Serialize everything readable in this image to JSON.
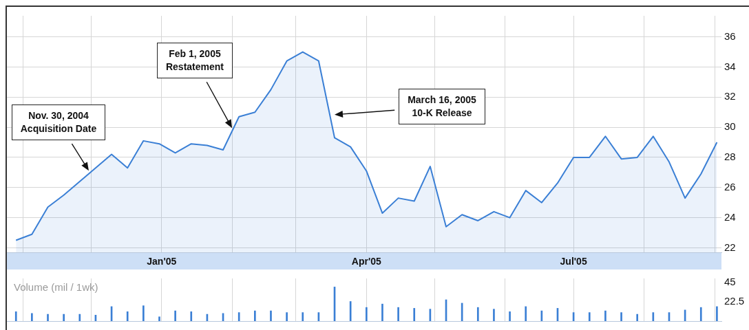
{
  "chart_data": [
    {
      "type": "area",
      "x": [
        "2004-10-29",
        "2004-11-05",
        "2004-11-12",
        "2004-11-19",
        "2004-11-26",
        "2004-12-03",
        "2004-12-10",
        "2004-12-17",
        "2004-12-24",
        "2004-12-31",
        "2005-01-07",
        "2005-01-14",
        "2005-01-21",
        "2005-01-28",
        "2005-02-04",
        "2005-02-11",
        "2005-02-18",
        "2005-02-25",
        "2005-03-04",
        "2005-03-11",
        "2005-03-18",
        "2005-03-25",
        "2005-04-01",
        "2005-04-08",
        "2005-04-15",
        "2005-04-22",
        "2005-04-29",
        "2005-05-06",
        "2005-05-13",
        "2005-05-20",
        "2005-05-27",
        "2005-06-03",
        "2005-06-10",
        "2005-06-17",
        "2005-06-24",
        "2005-07-01",
        "2005-07-08",
        "2005-07-15",
        "2005-07-22",
        "2005-07-29",
        "2005-08-05",
        "2005-08-12",
        "2005-08-19",
        "2005-08-26",
        "2005-09-02"
      ],
      "series": [
        {
          "color": "#3a7fd5",
          "values": [
            22.5,
            22.9,
            24.7,
            25.5,
            26.4,
            27.3,
            28.2,
            27.3,
            29.1,
            28.9,
            28.3,
            28.9,
            28.8,
            28.5,
            30.7,
            31.0,
            32.5,
            34.4,
            35.0,
            34.4,
            29.3,
            28.7,
            27.1,
            24.3,
            25.3,
            25.1,
            27.4,
            23.4,
            24.2,
            23.8,
            24.4,
            24.0,
            25.8,
            25.0,
            26.3,
            28.0,
            28.0,
            29.4,
            27.9,
            28.0,
            29.4,
            27.7,
            25.3,
            26.9,
            29.0
          ]
        }
      ],
      "xlim": [
        "2004-10-25",
        "2005-09-04"
      ],
      "xticks": [
        {
          "value": "2004-11-01",
          "label": null
        },
        {
          "value": "2004-12-01",
          "label": null
        },
        {
          "value": "2005-01-01",
          "label": "Jan'05"
        },
        {
          "value": "2005-02-01",
          "label": null
        },
        {
          "value": "2005-03-01",
          "label": null
        },
        {
          "value": "2005-04-01",
          "label": "Apr'05"
        },
        {
          "value": "2005-05-01",
          "label": null
        },
        {
          "value": "2005-06-01",
          "label": null
        },
        {
          "value": "2005-07-01",
          "label": "Jul'05"
        },
        {
          "value": "2005-08-01",
          "label": null
        },
        {
          "value": "2005-09-01",
          "label": null
        }
      ],
      "ylim": [
        21.7,
        37.4
      ],
      "yticks": [
        22,
        24,
        26,
        28,
        30,
        32,
        34,
        36
      ],
      "grid": true,
      "annotations": [
        "Nov. 30, 2004\nAcquisition Date",
        "Feb 1, 2005\nRestatement",
        "March 16, 2005\n10-K Release"
      ]
    },
    {
      "type": "bar",
      "title": "Volume (mil / 1wk)",
      "x": [
        "2004-10-29",
        "2004-11-05",
        "2004-11-12",
        "2004-11-19",
        "2004-11-26",
        "2004-12-03",
        "2004-12-10",
        "2004-12-17",
        "2004-12-24",
        "2004-12-31",
        "2005-01-07",
        "2005-01-14",
        "2005-01-21",
        "2005-01-28",
        "2005-02-04",
        "2005-02-11",
        "2005-02-18",
        "2005-02-25",
        "2005-03-04",
        "2005-03-11",
        "2005-03-18",
        "2005-03-25",
        "2005-04-01",
        "2005-04-08",
        "2005-04-15",
        "2005-04-22",
        "2005-04-29",
        "2005-05-06",
        "2005-05-13",
        "2005-05-20",
        "2005-05-27",
        "2005-06-03",
        "2005-06-10",
        "2005-06-17",
        "2005-06-24",
        "2005-07-01",
        "2005-07-08",
        "2005-07-15",
        "2005-07-22",
        "2005-07-29",
        "2005-08-05",
        "2005-08-12",
        "2005-08-19",
        "2005-08-26",
        "2005-09-02"
      ],
      "values": [
        11,
        9,
        8,
        8,
        8,
        7,
        17,
        11,
        18,
        5,
        12,
        11,
        8,
        9,
        10,
        12,
        12,
        10,
        10,
        10,
        40,
        23,
        16,
        20,
        16,
        15,
        14,
        25,
        21,
        16,
        14,
        11,
        17,
        12,
        15,
        10,
        10,
        12,
        10,
        8,
        10,
        10,
        13,
        16,
        17
      ],
      "color": "#3a7fd5",
      "xlim": [
        "2004-10-25",
        "2005-09-04"
      ],
      "xticks": [
        {
          "value": "2004-11-01",
          "label": null
        },
        {
          "value": "2004-12-01",
          "label": null
        },
        {
          "value": "2005-01-01",
          "label": null
        },
        {
          "value": "2005-02-01",
          "label": null
        },
        {
          "value": "2005-03-01",
          "label": null
        },
        {
          "value": "2005-04-01",
          "label": null
        },
        {
          "value": "2005-05-01",
          "label": null
        },
        {
          "value": "2005-06-01",
          "label": null
        },
        {
          "value": "2005-07-01",
          "label": null
        },
        {
          "value": "2005-08-01",
          "label": null
        },
        {
          "value": "2005-09-01",
          "label": null
        }
      ],
      "ylim": [
        0,
        50
      ],
      "yticks": [
        22.5,
        45
      ],
      "grid": "x",
      "tick_labels": "y"
    }
  ]
}
